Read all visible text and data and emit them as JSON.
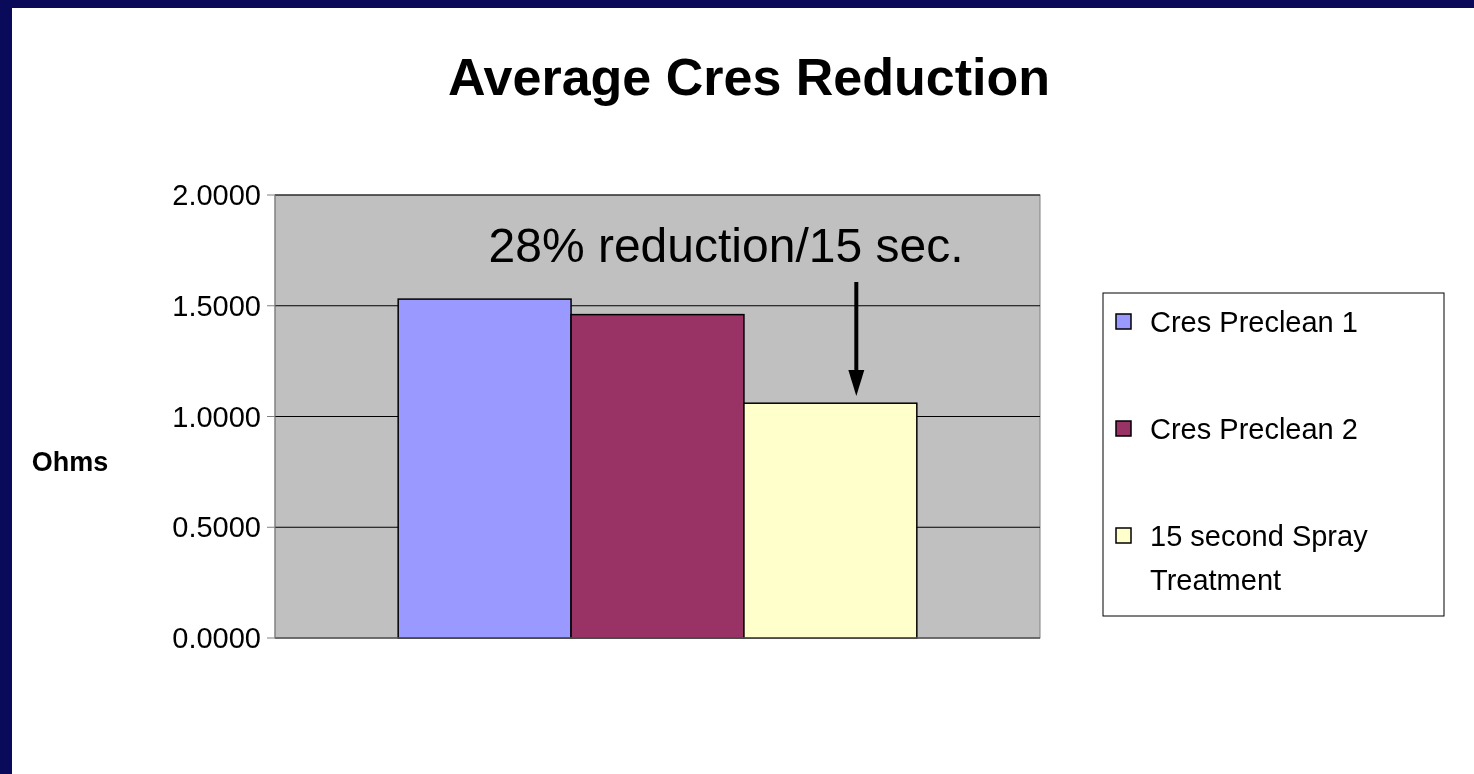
{
  "chart_data": {
    "type": "bar",
    "title": "Average Cres Reduction",
    "ylabel": "Ohms",
    "categories": [
      null
    ],
    "series": [
      {
        "name": "Cres Preclean 1",
        "color": "#9999ff",
        "values": [
          1.53
        ]
      },
      {
        "name": "Cres Preclean 2",
        "color": "#993366",
        "values": [
          1.46
        ]
      },
      {
        "name": "15 second Spray Treatment",
        "color": "#ffffcc",
        "values": [
          1.06
        ]
      }
    ],
    "ylim": [
      0,
      2
    ],
    "yticks": [
      {
        "value": 0,
        "label": "0.0000"
      },
      {
        "value": 0.5,
        "label": "0.5000"
      },
      {
        "value": 1,
        "label": "1.0000"
      },
      {
        "value": 1.5,
        "label": "1.5000"
      },
      {
        "value": 2,
        "label": "2.0000"
      }
    ],
    "grid": "y",
    "legend": "right",
    "annotations": [
      "28% reduction/15 sec."
    ]
  }
}
